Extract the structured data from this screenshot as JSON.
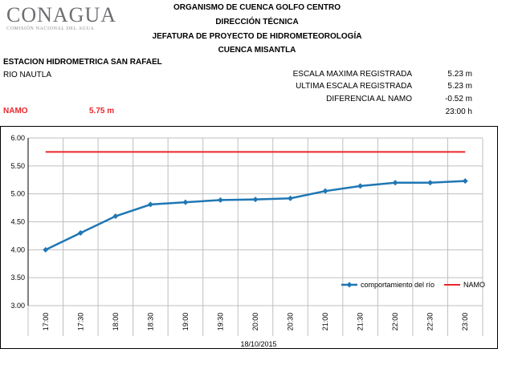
{
  "logo": {
    "name": "CONAGUA",
    "subtitle": "COMISIÓN NACIONAL DEL AGUA"
  },
  "header": {
    "line1": "ORGANISMO DE CUENCA GOLFO CENTRO",
    "line2": "DIRECCIÓN TÉCNICA",
    "line3": "JEFATURA DE PROYECTO DE HIDROMETEOROLOGÍA",
    "line4": "CUENCA MISANTLA"
  },
  "station": {
    "name": "ESTACION HIDROMETRICA SAN RAFAEL",
    "river": "RIO NAUTLA"
  },
  "namo": {
    "label": "NAMO",
    "value": "5.75 m"
  },
  "stats": {
    "max_label": "ESCALA MAXIMA REGISTRADA",
    "max_value": "5.23 m",
    "last_label": "ULTIMA ESCALA REGISTRADA",
    "last_value": "5.23 m",
    "diff_label": "DIFERENCIA AL NAMO",
    "diff_value": "-0.52 m",
    "time_value": "23:00 h"
  },
  "colors": {
    "river": "#1f77b4",
    "namo": "#e8272b"
  },
  "chart_data": {
    "type": "line",
    "categories": [
      "17:00",
      "17:30",
      "18:00",
      "18:30",
      "19:00",
      "19:30",
      "20:00",
      "20:30",
      "21:00",
      "21:30",
      "22:00",
      "22:30",
      "23:00"
    ],
    "series": [
      {
        "name": "comportamiento del río",
        "values": [
          4.0,
          4.3,
          4.6,
          4.81,
          4.85,
          4.89,
          4.9,
          4.92,
          5.05,
          5.14,
          5.2,
          5.2,
          5.23
        ]
      },
      {
        "name": "NAMO",
        "values": [
          5.75,
          5.75,
          5.75,
          5.75,
          5.75,
          5.75,
          5.75,
          5.75,
          5.75,
          5.75,
          5.75,
          5.75,
          5.75
        ]
      }
    ],
    "yticks": [
      "6.00",
      "5.50",
      "5.00",
      "4.50",
      "4.00",
      "3.50",
      "3.00"
    ],
    "ylim": [
      3.0,
      6.0
    ],
    "xlabel": "18/10/2015",
    "grid": true,
    "legend_position": "bottom-right"
  }
}
